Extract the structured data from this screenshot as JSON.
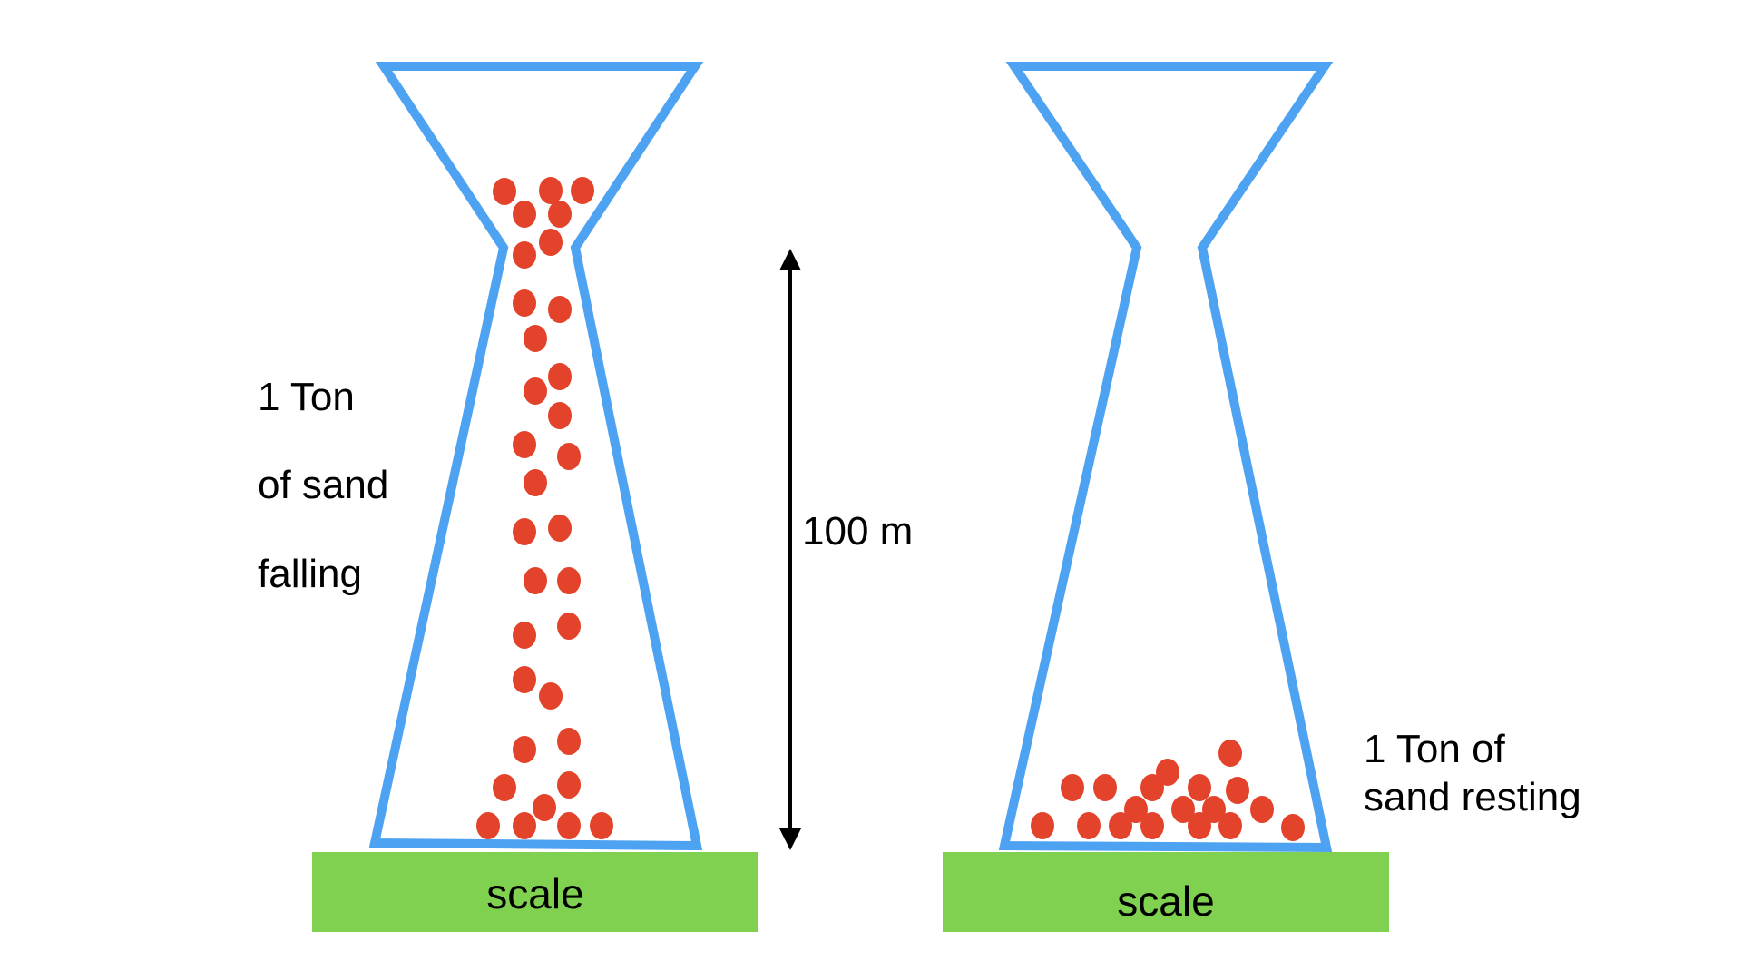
{
  "colors": {
    "glass": "#4EA2F2",
    "sand": "#E2432A",
    "scale": "#80D14F",
    "arrow": "#000000",
    "background": "#FFFFFF"
  },
  "left_panel": {
    "label_line1": "1 Ton",
    "label_line2": "of sand",
    "label_line3": "falling",
    "scale_label": "scale",
    "height_label": "100 m"
  },
  "right_panel": {
    "label_line1": "1 Ton  of",
    "label_line2": "sand resting",
    "scale_label": "scale"
  }
}
